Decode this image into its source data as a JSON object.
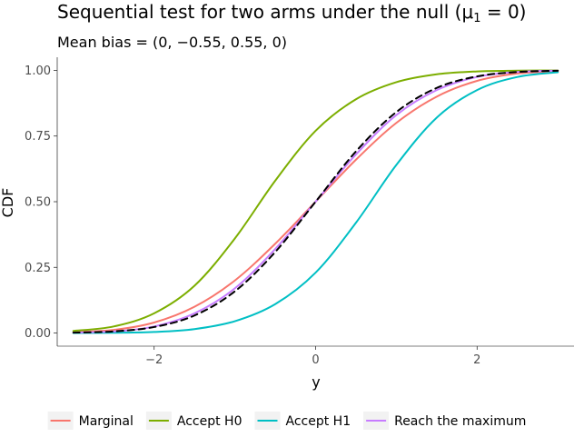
{
  "chart_data": {
    "type": "line",
    "title_main": "Sequential test for two arms under the null (",
    "title_mu": "μ",
    "title_sub": "1",
    "title_tail": " = 0)",
    "subtitle": "Mean bias = (0, −0.55, 0.55, 0)",
    "xlabel": "y",
    "ylabel": "CDF",
    "xlim": [
      -3.2,
      3.2
    ],
    "ylim": [
      -0.05,
      1.05
    ],
    "x_ticks": [
      -2,
      0,
      2
    ],
    "x_tick_labels": [
      "−2",
      "0",
      "2"
    ],
    "y_ticks": [
      0,
      0.25,
      0.5,
      0.75,
      1.0
    ],
    "y_tick_labels": [
      "0.00",
      "0.25",
      "0.50",
      "0.75",
      "1.00"
    ],
    "x": [
      -3.0,
      -2.5,
      -2.0,
      -1.5,
      -1.0,
      -0.5,
      0.0,
      0.5,
      1.0,
      1.5,
      2.0,
      2.5,
      3.0
    ],
    "series": [
      {
        "name": "Marginal",
        "color": "#F8766D",
        "values": [
          0.004,
          0.012,
          0.04,
          0.1,
          0.2,
          0.34,
          0.5,
          0.66,
          0.8,
          0.9,
          0.96,
          0.988,
          0.997
        ]
      },
      {
        "name": "Accept H0",
        "color": "#7CAE00",
        "values": [
          0.008,
          0.025,
          0.075,
          0.18,
          0.36,
          0.58,
          0.77,
          0.89,
          0.955,
          0.985,
          0.996,
          0.999,
          1.0
        ]
      },
      {
        "name": "Accept H1",
        "color": "#00BFC4",
        "values": [
          0.0,
          0.001,
          0.004,
          0.015,
          0.045,
          0.11,
          0.23,
          0.42,
          0.64,
          0.82,
          0.925,
          0.975,
          0.993
        ]
      },
      {
        "name": "Reach the maximum",
        "color": "#C77CFF",
        "values": [
          0.002,
          0.006,
          0.025,
          0.075,
          0.17,
          0.32,
          0.5,
          0.68,
          0.83,
          0.925,
          0.975,
          0.994,
          0.999
        ]
      },
      {
        "name": "",
        "color": "#000000",
        "dashed": true,
        "values": [
          0.0013,
          0.0062,
          0.0228,
          0.0668,
          0.1587,
          0.3085,
          0.5,
          0.6915,
          0.8413,
          0.9332,
          0.9772,
          0.9938,
          0.9987
        ]
      }
    ],
    "legend_position": "bottom",
    "grid": false
  }
}
